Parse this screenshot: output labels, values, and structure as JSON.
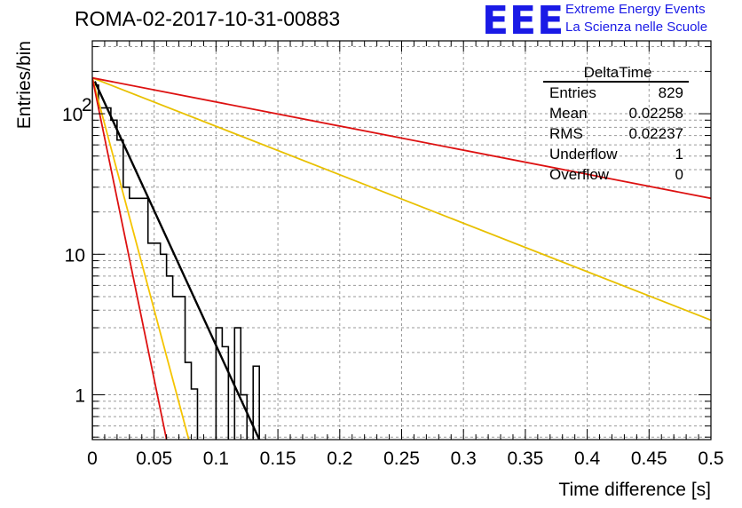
{
  "title": "ROMA-02-2017-10-31-00883",
  "logo": {
    "text": "EEE",
    "line1": "Extreme Energy Events",
    "line2": "La Scienza nelle Scuole",
    "color": "#1a1ae6"
  },
  "stats": {
    "header": "DeltaTime",
    "rows": [
      {
        "label": "Entries",
        "value": "829"
      },
      {
        "label": "Mean",
        "value": "0.02258"
      },
      {
        "label": "RMS",
        "value": "0.02237"
      },
      {
        "label": "Underflow",
        "value": "1"
      },
      {
        "label": "Overflow",
        "value": "0"
      }
    ]
  },
  "chart_data": {
    "type": "line",
    "xlabel": "Time difference [s]",
    "ylabel": "Entries/bin",
    "xlim": [
      0,
      0.5
    ],
    "ylim": [
      0.48,
      330
    ],
    "yscale": "log",
    "grid": true,
    "x_ticks": [
      "0",
      "0.05",
      "0.1",
      "0.15",
      "0.2",
      "0.25",
      "0.3",
      "0.35",
      "0.4",
      "0.45",
      "0.5"
    ],
    "y_ticks": [
      {
        "value": 1,
        "label": "1"
      },
      {
        "value": 10,
        "label": "10"
      },
      {
        "value": 100,
        "label": "10",
        "exponent": "2"
      }
    ],
    "histogram": {
      "bin_width": 0.005,
      "values": [
        160,
        110,
        110,
        90,
        65,
        30,
        25,
        25,
        25,
        12,
        12,
        10,
        7,
        5,
        5,
        1.7,
        1.1,
        0,
        0,
        0,
        3,
        2.2,
        0,
        3,
        1,
        0,
        1.6
      ]
    },
    "series": [
      {
        "color": "#000000",
        "points": [
          [
            0.002,
            170
          ],
          [
            0.135,
            0.48
          ]
        ]
      },
      {
        "color": "#f5c400",
        "points": [
          [
            0.0,
            180
          ],
          [
            0.078,
            0.48
          ]
        ]
      },
      {
        "color": "#e8c000",
        "points": [
          [
            0.0,
            180
          ],
          [
            0.5,
            3.4
          ]
        ]
      },
      {
        "color": "#dd1111",
        "points": [
          [
            0.0,
            180
          ],
          [
            0.06,
            0.48
          ]
        ]
      },
      {
        "color": "#dd1111",
        "points": [
          [
            0.0,
            180
          ],
          [
            0.5,
            25
          ]
        ]
      }
    ]
  }
}
